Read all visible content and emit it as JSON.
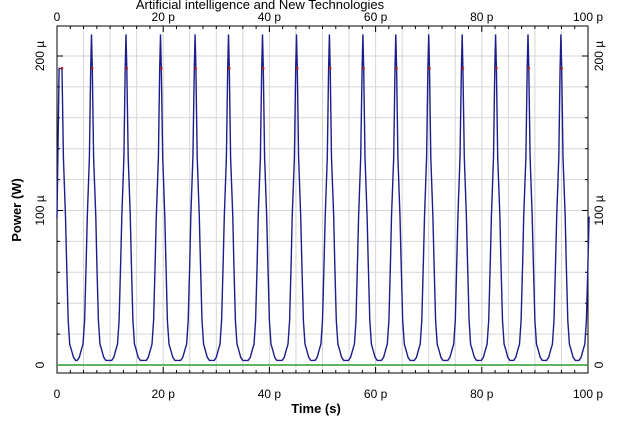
{
  "chart_data": {
    "type": "line",
    "title": "Artificial intelligence and New Technologies",
    "xlabel": "Time (s)",
    "ylabel": "Power (W)",
    "xlim": [
      0,
      100
    ],
    "ylim": [
      0,
      215
    ],
    "x_ticks": [
      {
        "value": 0,
        "label": "0"
      },
      {
        "value": 20,
        "label": "20 p"
      },
      {
        "value": 40,
        "label": "40 p"
      },
      {
        "value": 60,
        "label": "60 p"
      },
      {
        "value": 80,
        "label": "80 p"
      },
      {
        "value": 100,
        "label": "100 p"
      }
    ],
    "top_x_ticks": [
      {
        "value": 0,
        "label": "0"
      },
      {
        "value": 20,
        "label": "20 p"
      },
      {
        "value": 40,
        "label": "40 p"
      },
      {
        "value": 60,
        "label": "60 p"
      },
      {
        "value": 80,
        "label": "80 p"
      },
      {
        "value": 100,
        "label": "100 p"
      }
    ],
    "y_ticks": [
      {
        "value": 0,
        "label": "0"
      },
      {
        "value": 100,
        "label": "100 µ"
      },
      {
        "value": 200,
        "label": "200 µ"
      }
    ],
    "grid": true,
    "pulse_peaks_x": [
      0.8,
      6.5,
      13.0,
      19.5,
      26.0,
      32.3,
      38.7,
      45.1,
      51.3,
      57.6,
      63.8,
      70.0,
      76.3,
      82.6,
      88.7,
      94.9,
      101.0
    ],
    "pulse_peak_value": 214,
    "pulse_shoulder_value": 192,
    "pulse_base_value": 3,
    "series": [
      {
        "color": "#1c1c8c",
        "kind": "pulse-train"
      },
      {
        "color": "#2e9b2e",
        "kind": "baseline",
        "value": 0
      }
    ]
  }
}
